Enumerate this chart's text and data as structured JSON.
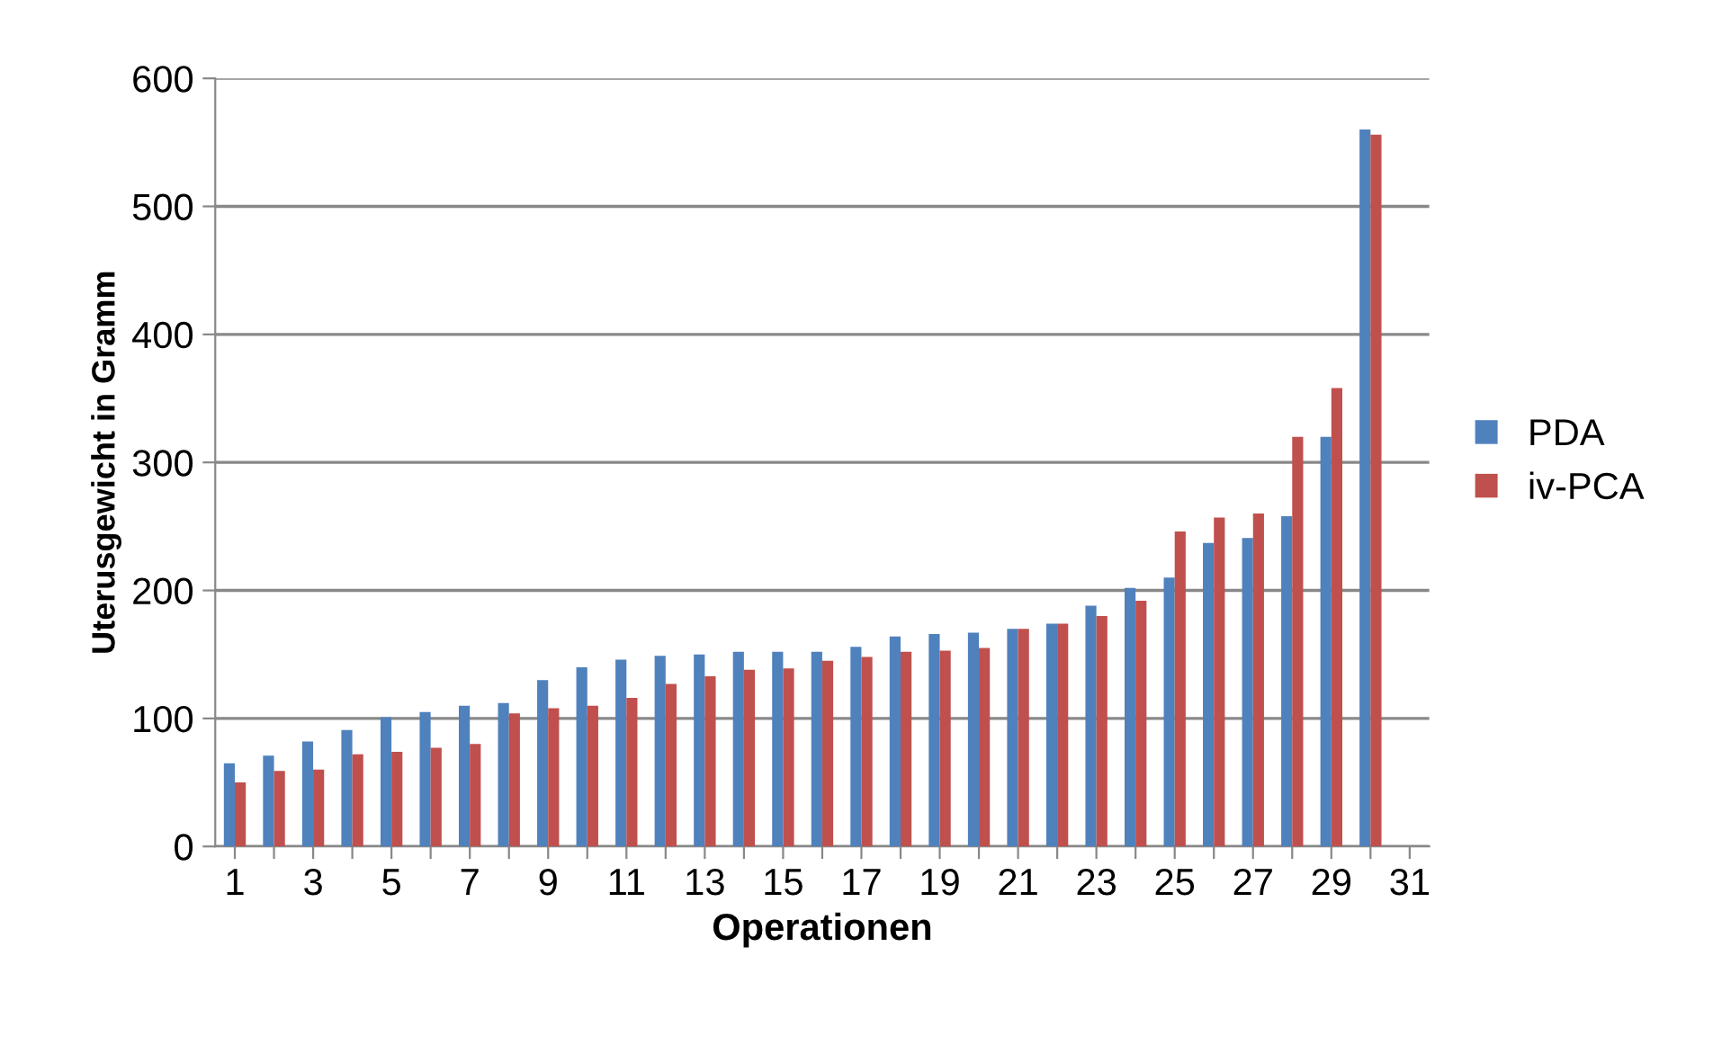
{
  "chart_data": {
    "type": "bar",
    "xlabel": "Operationen",
    "ylabel": "Uterusgewicht in Gramm",
    "categories": [
      "1",
      null,
      "3",
      null,
      "5",
      null,
      "7",
      null,
      "9",
      null,
      "11",
      null,
      "13",
      null,
      "15",
      null,
      "17",
      null,
      "19",
      null,
      "21",
      null,
      "23",
      null,
      "25",
      null,
      "27",
      null,
      "29",
      null,
      "31"
    ],
    "series": [
      {
        "name": "PDA",
        "color": "#4f81bd",
        "values": [
          65,
          71,
          82,
          91,
          101,
          105,
          110,
          112,
          130,
          140,
          146,
          149,
          150,
          152,
          152,
          152,
          156,
          164,
          166,
          167,
          170,
          174,
          188,
          202,
          210,
          237,
          241,
          258,
          320,
          560,
          null
        ]
      },
      {
        "name": "iv-PCA",
        "color": "#c0504d",
        "values": [
          50,
          59,
          60,
          72,
          74,
          77,
          80,
          104,
          108,
          110,
          116,
          127,
          133,
          138,
          139,
          145,
          148,
          152,
          153,
          155,
          170,
          174,
          180,
          192,
          246,
          257,
          260,
          320,
          358,
          556,
          null
        ]
      }
    ],
    "ylim": [
      0,
      600
    ],
    "yticks": [
      0,
      100,
      200,
      300,
      400,
      500,
      600
    ],
    "grid": "y",
    "legend": "right"
  }
}
